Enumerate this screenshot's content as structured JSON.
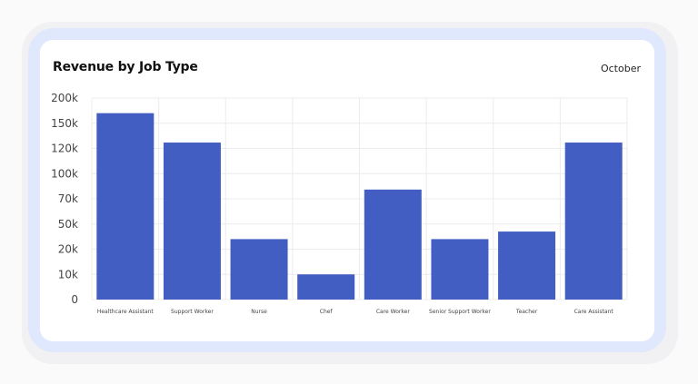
{
  "header": {
    "title": "Revenue by Job Type",
    "period": "October"
  },
  "chart_data": {
    "type": "bar",
    "title": "Revenue by Job Type",
    "xlabel": "",
    "ylabel": "",
    "categories": [
      "Healthcare Assistant",
      "Support Worker",
      "Nurse",
      "Chef",
      "Care Worker",
      "Senior Support Worker",
      "Teacher",
      "Care Assistant"
    ],
    "values": [
      170000,
      127000,
      32000,
      10000,
      81000,
      32000,
      41000,
      127000
    ],
    "y_tick_labels": [
      "0",
      "10k",
      "20k",
      "50k",
      "70k",
      "100k",
      "120k",
      "150k",
      "200k"
    ],
    "y_tick_values": [
      0,
      10000,
      20000,
      50000,
      70000,
      100000,
      120000,
      150000,
      200000
    ],
    "ylim": [
      0,
      200000
    ],
    "y_scale": "non-uniform (evenly spaced ticks)",
    "grid": true,
    "legend": "none",
    "bar_color": "#435ec3"
  }
}
